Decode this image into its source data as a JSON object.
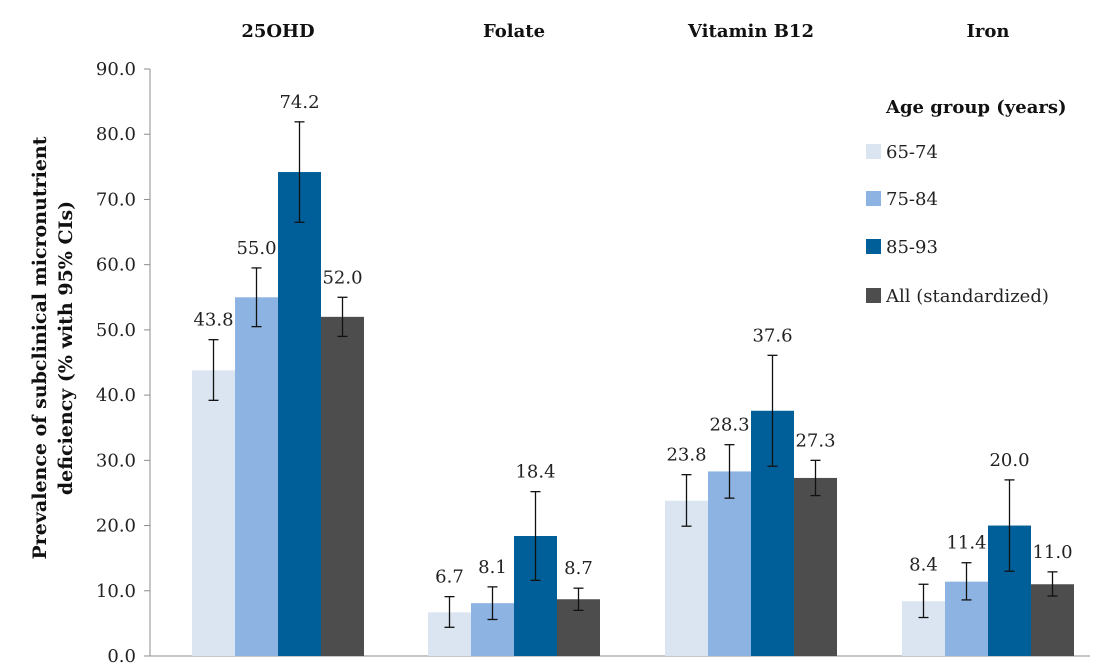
{
  "chart_data": {
    "type": "bar",
    "title": "",
    "ylabel_line1": "Prevalence of subclinical micronutrient",
    "ylabel_line2": "deficiency (% with 95% CIs)",
    "ylim": [
      0,
      90
    ],
    "yticks": [
      "0.0",
      "10.0",
      "20.0",
      "30.0",
      "40.0",
      "50.0",
      "60.0",
      "70.0",
      "80.0",
      "90.0"
    ],
    "categories": [
      "25OHD",
      "Folate",
      "Vitamin B12",
      "Iron"
    ],
    "legend_title": "Age group (years)",
    "legend_position": "right",
    "grid": false,
    "series": [
      {
        "name": "65-74",
        "color": "#dbe5f1",
        "values": [
          43.8,
          6.7,
          23.8,
          8.4
        ],
        "ci_low": [
          39.2,
          4.4,
          19.9,
          5.9
        ],
        "ci_high": [
          48.5,
          9.1,
          27.8,
          11.0
        ],
        "labels": [
          "43.8",
          "6.7",
          "23.8",
          "8.4"
        ]
      },
      {
        "name": "75-84",
        "color": "#8db3e2",
        "values": [
          55.0,
          8.1,
          28.3,
          11.4
        ],
        "ci_low": [
          50.5,
          5.6,
          24.2,
          8.6
        ],
        "ci_high": [
          59.5,
          10.6,
          32.4,
          14.3
        ],
        "labels": [
          "55.0",
          "8.1",
          "28.3",
          "11.4"
        ]
      },
      {
        "name": "85-93",
        "color": "#005f99",
        "values": [
          74.2,
          18.4,
          37.6,
          20.0
        ],
        "ci_low": [
          66.5,
          11.6,
          29.1,
          13.0
        ],
        "ci_high": [
          81.9,
          25.2,
          46.1,
          27.0
        ],
        "labels": [
          "74.2",
          "18.4",
          "37.6",
          "20.0"
        ]
      },
      {
        "name": "All (standardized)",
        "color": "#4d4d4d",
        "values": [
          52.0,
          8.7,
          27.3,
          11.0
        ],
        "ci_low": [
          49.0,
          7.0,
          24.6,
          9.2
        ],
        "ci_high": [
          55.0,
          10.4,
          30.0,
          12.9
        ],
        "labels": [
          "52.0",
          "8.7",
          "27.3",
          "11.0"
        ]
      }
    ]
  }
}
